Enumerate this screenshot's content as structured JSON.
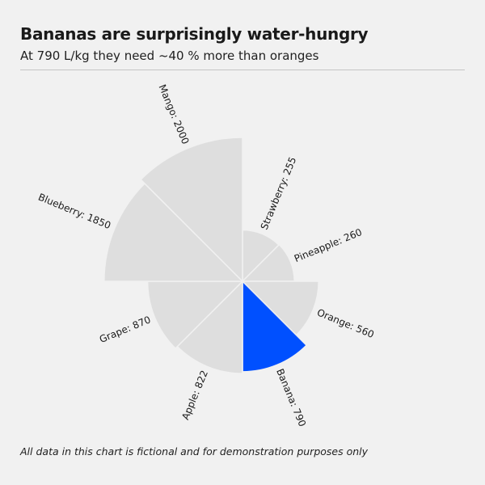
{
  "title": "Bananas are surprisingly water-hungry",
  "subtitle": "At 790 L/kg they need ~40 % more than oranges",
  "footnote": "All data in this chart is fictional and for demonstration purposes only",
  "colors": {
    "highlight": "#0050ff",
    "muted": "#dedede",
    "background": "#f1f1f1"
  },
  "chart_data": {
    "type": "polar-area",
    "categories": [
      "Strawberry",
      "Pineapple",
      "Orange",
      "Banana",
      "Apple",
      "Grape",
      "Blueberry",
      "Mango"
    ],
    "values": [
      255,
      260,
      560,
      790,
      822,
      870,
      1850,
      2000
    ],
    "labels": [
      "Strawberry: 255",
      "Pineapple: 260",
      "Orange: 560",
      "Banana: 790",
      "Apple: 822",
      "Grape: 870",
      "Blueberry: 1850",
      "Mango: 2000"
    ],
    "highlight": "Banana",
    "max_value": 2000
  }
}
